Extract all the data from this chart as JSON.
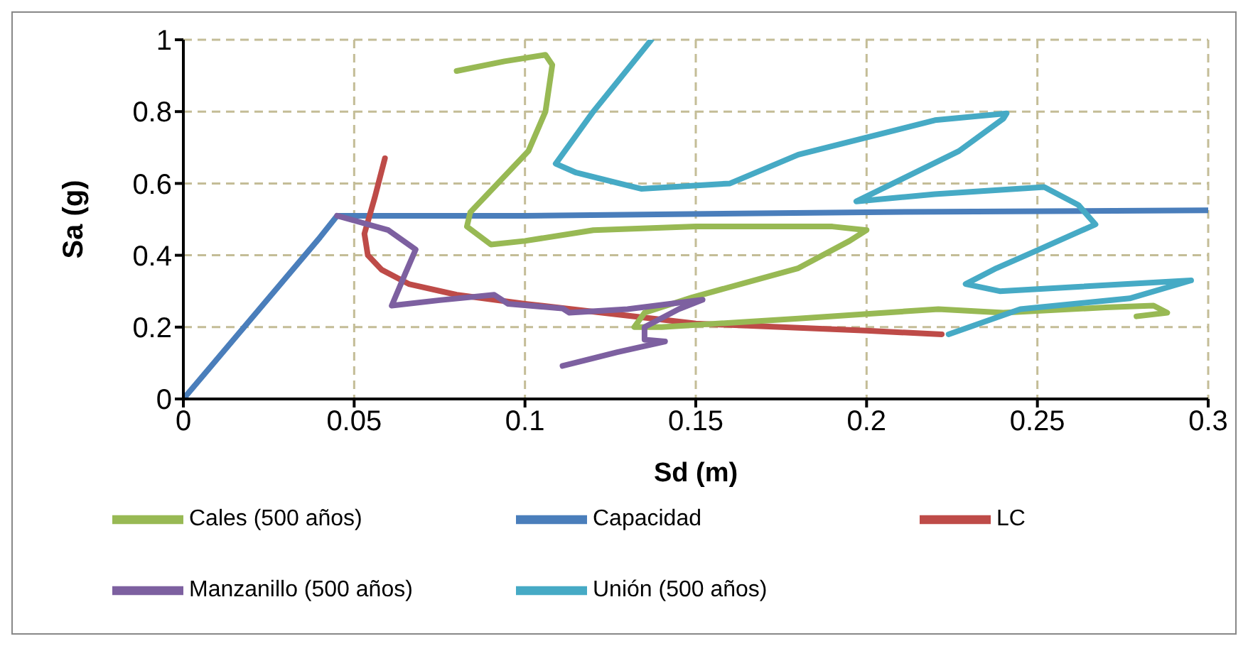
{
  "chart_data": {
    "type": "line",
    "xlabel": "Sd (m)",
    "ylabel": "Sa (g)",
    "xlim": [
      0,
      0.3
    ],
    "xticks": [
      0,
      0.05,
      0.1,
      0.15,
      0.2,
      0.25,
      0.3
    ],
    "ylim": [
      0,
      1
    ],
    "yticks": [
      0,
      0.2,
      0.4,
      0.6,
      0.8,
      1
    ],
    "grid": true,
    "legend": "bottom",
    "marker": "none",
    "line_style": "solid",
    "series": [
      {
        "name": "Capacidad",
        "color": "#4a7ebb",
        "x": [
          0,
          0.04,
          0.045,
          0.1,
          0.2,
          0.3
        ],
        "values": [
          0,
          0.45,
          0.51,
          0.51,
          0.52,
          0.525
        ]
      },
      {
        "name": "LC",
        "color": "#be4b48",
        "x": [
          0.059,
          0.056,
          0.053,
          0.054,
          0.058,
          0.066,
          0.08,
          0.1,
          0.15,
          0.2,
          0.222
        ],
        "values": [
          0.67,
          0.56,
          0.46,
          0.4,
          0.36,
          0.32,
          0.29,
          0.265,
          0.21,
          0.19,
          0.18
        ]
      },
      {
        "name": "Cales (500 años)",
        "color": "#98b954",
        "x": [
          0.08,
          0.094,
          0.106,
          0.108,
          0.106,
          0.101,
          0.092,
          0.084,
          0.083,
          0.09,
          0.1,
          0.12,
          0.15,
          0.19,
          0.2,
          0.195,
          0.18,
          0.149,
          0.135,
          0.132,
          0.14,
          0.18,
          0.221,
          0.24,
          0.27,
          0.284,
          0.288,
          0.279
        ],
        "values": [
          0.913,
          0.94,
          0.958,
          0.93,
          0.8,
          0.69,
          0.6,
          0.52,
          0.48,
          0.43,
          0.44,
          0.47,
          0.48,
          0.48,
          0.47,
          0.44,
          0.364,
          0.283,
          0.24,
          0.2,
          0.2,
          0.224,
          0.25,
          0.24,
          0.255,
          0.26,
          0.24,
          0.23
        ]
      },
      {
        "name": "Manzanillo (500 años)",
        "color": "#7d60a0",
        "x": [
          0.045,
          0.06,
          0.068,
          0.065,
          0.061,
          0.075,
          0.091,
          0.095,
          0.111,
          0.113,
          0.13,
          0.152,
          0.145,
          0.135,
          0.135,
          0.141,
          0.127,
          0.111
        ],
        "values": [
          0.51,
          0.47,
          0.416,
          0.35,
          0.26,
          0.275,
          0.29,
          0.265,
          0.252,
          0.24,
          0.25,
          0.276,
          0.25,
          0.2,
          0.165,
          0.16,
          0.13,
          0.092
        ]
      },
      {
        "name": "Unión (500 años)",
        "color": "#46aac5",
        "x": [
          0.137,
          0.12,
          0.109,
          0.115,
          0.134,
          0.16,
          0.18,
          0.22,
          0.241,
          0.24,
          0.227,
          0.197,
          0.22,
          0.252,
          0.262,
          0.267,
          0.249,
          0.238,
          0.229,
          0.239,
          0.295,
          0.277,
          0.245,
          0.224
        ],
        "values": [
          1.0,
          0.8,
          0.655,
          0.63,
          0.585,
          0.6,
          0.68,
          0.776,
          0.795,
          0.78,
          0.69,
          0.55,
          0.57,
          0.59,
          0.54,
          0.486,
          0.41,
          0.364,
          0.32,
          0.3,
          0.33,
          0.28,
          0.25,
          0.18
        ]
      }
    ]
  }
}
